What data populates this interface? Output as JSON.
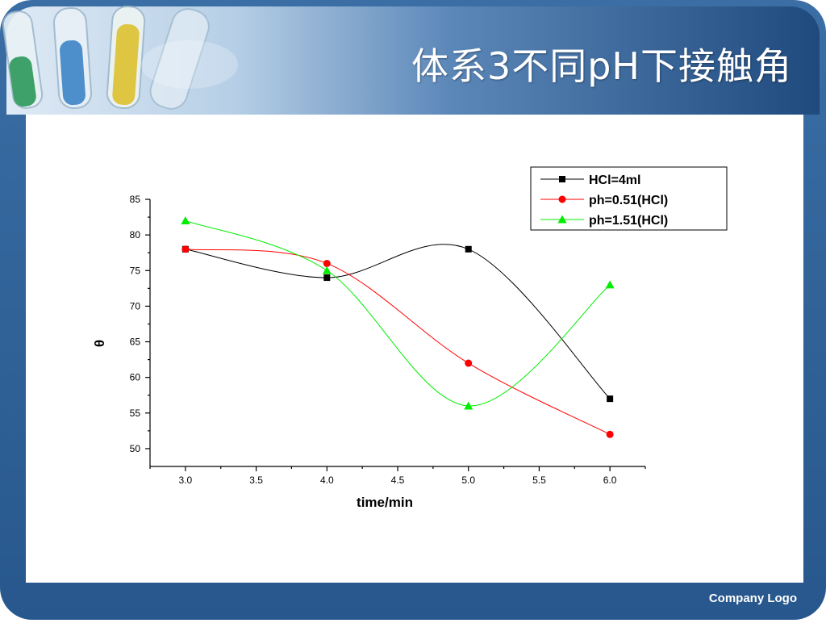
{
  "slide": {
    "title": "体系3不同pH下接触角",
    "company_logo": "Company Logo",
    "colors": {
      "frame": "#2d5c8f",
      "frame_dark": "#1d3f6a",
      "header_light": "#c8dcee"
    }
  },
  "chart_data": {
    "type": "line",
    "title": "",
    "xlabel": "time/min",
    "ylabel": "θ",
    "xlim": [
      2.75,
      6.25
    ],
    "ylim": [
      47.5,
      85
    ],
    "x_ticks": [
      "3.0",
      "3.5",
      "4.0",
      "4.5",
      "5.0",
      "5.5",
      "6.0"
    ],
    "y_ticks": [
      "50",
      "55",
      "60",
      "65",
      "70",
      "75",
      "80",
      "85"
    ],
    "grid": false,
    "legend_position": "top-right",
    "x": [
      3.0,
      4.0,
      5.0,
      6.0
    ],
    "series": [
      {
        "name": "HCl=4ml",
        "values": [
          78,
          74,
          78,
          57
        ],
        "color": "#000000",
        "marker": "square"
      },
      {
        "name": "ph=0.51(HCl)",
        "values": [
          78,
          76,
          62,
          52
        ],
        "color": "#ff0000",
        "marker": "circle"
      },
      {
        "name": "ph=1.51(HCl)",
        "values": [
          82,
          75,
          56,
          73
        ],
        "color": "#00ee00",
        "marker": "triangle"
      }
    ]
  }
}
